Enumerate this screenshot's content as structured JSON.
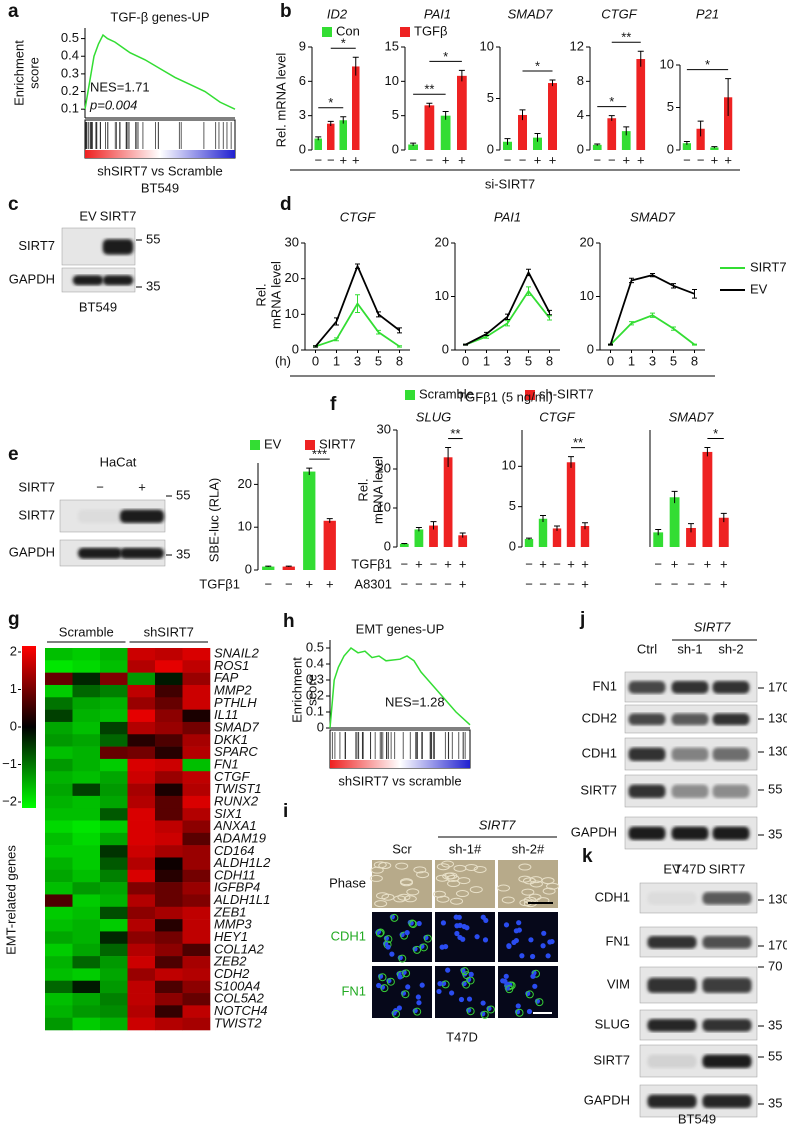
{
  "panel_labels": [
    "a",
    "b",
    "c",
    "d",
    "e",
    "f",
    "g",
    "h",
    "i",
    "j",
    "k"
  ],
  "shared_labels": {
    "b": "si-SIRT7",
    "d_x": "TGFβ1 (5 ng/ml)",
    "d_unit": "(h)"
  },
  "chart_data": [
    {
      "type": "line",
      "title": "TGF-β genes-UP",
      "ylabel": [
        "Enrichment",
        "score"
      ],
      "xlabel": [
        "shSIRT7 vs Scramble",
        "BT549"
      ],
      "annotations": [
        "NES=1.71",
        "p=0.004"
      ],
      "x": [
        0,
        3,
        6,
        9,
        12,
        15,
        20,
        30,
        40,
        50,
        60,
        70,
        80,
        90,
        100
      ],
      "xlim": [
        0,
        100
      ],
      "series": [
        {
          "color": "#33dd33",
          "values": [
            0.1,
            0.25,
            0.4,
            0.47,
            0.52,
            0.5,
            0.48,
            0.42,
            0.38,
            0.33,
            0.28,
            0.24,
            0.2,
            0.14,
            0.1
          ]
        }
      ],
      "ylim": [
        0.05,
        0.56
      ],
      "yticks": [
        0.1,
        0.2,
        0.3,
        0.4,
        0.5
      ]
    },
    {
      "type": "bar",
      "title": "ID2",
      "categories": [
        "−",
        "−",
        "+",
        "+"
      ],
      "values": [
        1,
        2.3,
        2.6,
        7.3
      ],
      "errors": [
        0.15,
        0.2,
        0.3,
        0.8
      ],
      "colors": [
        "#33dd33",
        "#ee2222",
        "#33dd33",
        "#ee2222"
      ],
      "ylim": [
        0,
        9
      ],
      "yticks": [
        0,
        3,
        6,
        9
      ],
      "ylabel": "Rel. mRNA level",
      "legend": [
        {
          "name": "Con",
          "color": "#33dd33"
        },
        {
          "name": "TGFβ",
          "color": "#ee2222"
        }
      ],
      "brackets": [
        {
          "from": 0,
          "to": 2,
          "label": "*"
        },
        {
          "from": 1,
          "to": 3,
          "label": "*"
        }
      ]
    },
    {
      "type": "bar",
      "title": "PAI1",
      "categories": [
        "−",
        "−",
        "+",
        "+"
      ],
      "values": [
        0.8,
        6.5,
        5,
        10.8
      ],
      "errors": [
        0.2,
        0.3,
        0.6,
        0.8
      ],
      "colors": [
        "#33dd33",
        "#ee2222",
        "#33dd33",
        "#ee2222"
      ],
      "ylim": [
        0,
        15
      ],
      "yticks": [
        0,
        5,
        10,
        15
      ],
      "brackets": [
        {
          "from": 0,
          "to": 2,
          "label": "**"
        },
        {
          "from": 1,
          "to": 3,
          "label": "*"
        }
      ]
    },
    {
      "type": "bar",
      "title": "SMAD7",
      "categories": [
        "−",
        "−",
        "+",
        "+"
      ],
      "values": [
        0.8,
        3.4,
        1.2,
        6.5
      ],
      "errors": [
        0.3,
        0.5,
        0.4,
        0.3
      ],
      "colors": [
        "#33dd33",
        "#ee2222",
        "#33dd33",
        "#ee2222"
      ],
      "ylim": [
        0,
        10
      ],
      "yticks": [
        0,
        5,
        10
      ],
      "brackets": [
        {
          "from": 1,
          "to": 3,
          "label": "*"
        }
      ]
    },
    {
      "type": "bar",
      "title": "CTGF",
      "categories": [
        "−",
        "−",
        "+",
        "+"
      ],
      "values": [
        0.6,
        3.7,
        2.2,
        10.6
      ],
      "errors": [
        0.1,
        0.3,
        0.5,
        0.9
      ],
      "colors": [
        "#33dd33",
        "#ee2222",
        "#33dd33",
        "#ee2222"
      ],
      "ylim": [
        0,
        12
      ],
      "yticks": [
        0,
        4,
        8,
        12
      ],
      "brackets": [
        {
          "from": 0,
          "to": 2,
          "label": "*"
        },
        {
          "from": 1,
          "to": 3,
          "label": "**"
        }
      ]
    },
    {
      "type": "bar",
      "title": "P21",
      "categories": [
        "−",
        "−",
        "+",
        "+"
      ],
      "values": [
        0.8,
        2.5,
        0.3,
        6.2
      ],
      "errors": [
        0.2,
        0.9,
        0.1,
        2.2
      ],
      "colors": [
        "#33dd33",
        "#ee2222",
        "#33dd33",
        "#ee2222"
      ],
      "ylim": [
        0,
        10
      ],
      "yticks": [
        0,
        5,
        10
      ],
      "brackets": [
        {
          "from": 0,
          "to": 3,
          "label": "*"
        }
      ]
    },
    {
      "type": "line",
      "title": "CTGF",
      "categories": [
        "0",
        "1",
        "3",
        "5",
        "8"
      ],
      "series": [
        {
          "color": "#33dd33",
          "values": [
            1,
            3,
            13,
            5,
            1
          ],
          "errors": [
            0.2,
            0.4,
            2.5,
            0.5,
            0.2
          ]
        },
        {
          "color": "#000000",
          "values": [
            1,
            8,
            23.5,
            10,
            5.5
          ],
          "errors": [
            0.2,
            1,
            0.6,
            0.7,
            0.7
          ]
        }
      ],
      "ylim": [
        0,
        30
      ],
      "yticks": [
        0,
        10,
        20,
        30
      ],
      "ylabel": [
        "Rel.",
        "mRNA level"
      ]
    },
    {
      "type": "line",
      "title": "PAI1",
      "categories": [
        "0",
        "1",
        "3",
        "5",
        "8"
      ],
      "series": [
        {
          "color": "#33dd33",
          "values": [
            1,
            2.5,
            5,
            11,
            6
          ],
          "errors": [
            0.1,
            0.3,
            0.5,
            0.8,
            0.4
          ]
        },
        {
          "color": "#000000",
          "values": [
            1,
            3,
            6.2,
            14.5,
            7
          ],
          "errors": [
            0.1,
            0.3,
            0.5,
            0.6,
            0.4
          ]
        }
      ],
      "ylim": [
        0,
        20
      ],
      "yticks": [
        0,
        10,
        20
      ]
    },
    {
      "type": "line",
      "title": "SMAD7",
      "categories": [
        "0",
        "1",
        "3",
        "5",
        "8"
      ],
      "series": [
        {
          "name": "SIRT7",
          "color": "#33dd33",
          "values": [
            1,
            5,
            6.5,
            4,
            1
          ],
          "errors": [
            0.1,
            0.3,
            0.4,
            0.3,
            0.1
          ]
        },
        {
          "name": "EV",
          "color": "#000000",
          "values": [
            1,
            13,
            14,
            12,
            10.5
          ],
          "errors": [
            0.1,
            0.4,
            0.3,
            0.4,
            0.8
          ]
        }
      ],
      "ylim": [
        0,
        20
      ],
      "yticks": [
        0,
        10,
        20
      ]
    },
    {
      "type": "bar",
      "rows": [
        {
          "name": "TGFβ1",
          "marks": [
            "−",
            "−",
            "+",
            "+"
          ]
        }
      ],
      "values": [
        0.8,
        0.8,
        23,
        11.5
      ],
      "errors": [
        0.1,
        0.1,
        0.8,
        0.5
      ],
      "colors": [
        "#33dd33",
        "#ee2222",
        "#33dd33",
        "#ee2222"
      ],
      "ylim": [
        0,
        25
      ],
      "yticks": [
        0,
        10,
        20
      ],
      "ylabel": "SBE-luc (RLA)",
      "legend": [
        {
          "name": "EV",
          "color": "#33dd33"
        },
        {
          "name": "SIRT7",
          "color": "#ee2222"
        }
      ],
      "brackets": [
        {
          "from": 2,
          "to": 3,
          "label": "***"
        }
      ]
    },
    {
      "type": "bar",
      "title": "SLUG",
      "rows": [
        {
          "name": "TGFβ1",
          "marks": [
            "−",
            "+",
            "−",
            "+",
            "+"
          ]
        },
        {
          "name": "A8301",
          "marks": [
            "−",
            "−",
            "−",
            "−",
            "+"
          ]
        }
      ],
      "values": [
        0.8,
        4.5,
        5.5,
        23,
        3
      ],
      "errors": [
        0.1,
        0.5,
        1,
        2.5,
        0.6
      ],
      "colors": [
        "#33dd33",
        "#33dd33",
        "#ee2222",
        "#ee2222",
        "#ee2222"
      ],
      "ylim": [
        0,
        30
      ],
      "yticks": [
        0,
        10,
        20,
        30
      ],
      "ylabel": [
        "Rel.",
        "mRNA level"
      ],
      "legend": [
        {
          "name": "Scramble",
          "color": "#33dd33"
        },
        {
          "name": "sh-SIRT7",
          "color": "#ee2222"
        }
      ],
      "brackets": [
        {
          "from": 3,
          "to": 4,
          "label": "**"
        }
      ]
    },
    {
      "type": "bar",
      "title": "CTGF",
      "rows": [
        {
          "marks": [
            "−",
            "+",
            "−",
            "+",
            "+"
          ]
        },
        {
          "marks": [
            "−",
            "−",
            "−",
            "−",
            "+"
          ]
        }
      ],
      "values": [
        1,
        3.5,
        2.3,
        10.5,
        2.6
      ],
      "errors": [
        0.1,
        0.4,
        0.3,
        0.7,
        0.4
      ],
      "colors": [
        "#33dd33",
        "#33dd33",
        "#ee2222",
        "#ee2222",
        "#ee2222"
      ],
      "ylim": [
        0,
        14.5
      ],
      "yticks": [
        0,
        5,
        10
      ],
      "brackets": [
        {
          "from": 3,
          "to": 4,
          "label": "**"
        }
      ]
    },
    {
      "type": "bar",
      "title": "SMAD7",
      "rows": [
        {
          "marks": [
            "−",
            "+",
            "−",
            "+",
            "+"
          ]
        },
        {
          "marks": [
            "−",
            "−",
            "−",
            "−",
            "+"
          ]
        }
      ],
      "values": [
        1,
        3.4,
        1.3,
        6.5,
        2
      ],
      "errors": [
        0.2,
        0.4,
        0.3,
        0.3,
        0.3
      ],
      "colors": [
        "#33dd33",
        "#33dd33",
        "#ee2222",
        "#ee2222",
        "#ee2222"
      ],
      "ylim": [
        0,
        8
      ],
      "yticks": [],
      "brackets": [
        {
          "from": 3,
          "to": 4,
          "label": "*"
        }
      ]
    },
    {
      "type": "heatmap",
      "ylabel": "EMT-related genes",
      "groups": [
        {
          "name": "Scramble",
          "span": 3
        },
        {
          "name": "shSIRT7",
          "span": 3
        }
      ],
      "clim": [
        -2,
        2
      ],
      "cticks": [
        2,
        1,
        0,
        {
          "value": -1,
          "label": "−1"
        },
        {
          "value": -2,
          "label": "−2"
        }
      ],
      "rows": [
        "SNAIL2",
        "ROS1",
        "FAP",
        "MMP2",
        "PTHLH",
        "IL11",
        "SMAD7",
        "DKK1",
        "SPARC",
        "FN1",
        "CTGF",
        "TWIST1",
        "RUNX2",
        "SIX1",
        "ANXA1",
        "ADAM19",
        "CD164",
        "ALDH1L2",
        "CDH11",
        "IGFBP4",
        "ALDH1L1",
        "ZEB1",
        "MMP3",
        "HEY1",
        "COL1A2",
        "ZEB2",
        "CDH2",
        "S100A4",
        "COL5A2",
        "NOTCH4",
        "TWIST2"
      ],
      "values": [
        [
          -1.5,
          -1.6,
          -1.4,
          1.6,
          1.5,
          1.7
        ],
        [
          -1.8,
          -1.7,
          -1.5,
          1.4,
          1.8,
          1.5
        ],
        [
          0.8,
          -0.3,
          1.0,
          -1.2,
          -0.2,
          1.2
        ],
        [
          -1.6,
          -0.8,
          -1.0,
          1.5,
          0.5,
          1.6
        ],
        [
          -0.9,
          -1.3,
          -1.4,
          1.2,
          0.8,
          1.6
        ],
        [
          -0.5,
          -1.4,
          -1.5,
          1.8,
          1.1,
          0.2
        ],
        [
          -1.3,
          -1.5,
          -0.5,
          1.4,
          1.2,
          0.9
        ],
        [
          -1.2,
          -1.3,
          -0.8,
          0.3,
          0.6,
          1.3
        ],
        [
          -1.5,
          -1.4,
          0.8,
          0.9,
          0.3,
          1.4
        ],
        [
          -1.2,
          -1.4,
          -1.6,
          1.7,
          1.6,
          -1.5
        ],
        [
          -1.4,
          -1.5,
          -1.3,
          1.6,
          1.2,
          1.5
        ],
        [
          -1.3,
          -0.5,
          -1.2,
          1.3,
          0.2,
          1.4
        ],
        [
          -1.4,
          -1.5,
          -1.3,
          1.4,
          0.7,
          1.7
        ],
        [
          -1.5,
          -1.5,
          -0.7,
          1.7,
          0.7,
          1.4
        ],
        [
          -1.7,
          -1.8,
          -1.6,
          1.7,
          1.5,
          1.1
        ],
        [
          -1.5,
          -1.7,
          -1.3,
          1.7,
          1.6,
          0.7
        ],
        [
          -1.6,
          -1.6,
          -0.4,
          1.6,
          1.3,
          1.2
        ],
        [
          -1.4,
          -1.6,
          -0.7,
          1.4,
          0.1,
          1.2
        ],
        [
          -1.3,
          -1.5,
          -1.0,
          1.7,
          0.3,
          0.9
        ],
        [
          -1.5,
          -1.2,
          -1.3,
          1.0,
          0.8,
          1.2
        ],
        [
          0.6,
          -1.6,
          -1.4,
          1.4,
          0.8,
          1.0
        ],
        [
          -1.6,
          -1.5,
          -0.6,
          1.1,
          1.3,
          1.5
        ],
        [
          -1.5,
          -1.4,
          -1.6,
          1.4,
          0.3,
          1.5
        ],
        [
          -1.3,
          -1.4,
          -0.3,
          1.1,
          0.9,
          1.5
        ],
        [
          -1.6,
          -1.3,
          -0.8,
          1.4,
          1.1,
          0.6
        ],
        [
          -1.4,
          -0.8,
          -1.2,
          1.6,
          0.6,
          1.3
        ],
        [
          -1.5,
          -1.6,
          -1.3,
          1.2,
          1.5,
          1.4
        ],
        [
          -0.8,
          -0.2,
          -1.2,
          1.5,
          0.6,
          1.1
        ],
        [
          -1.5,
          -1.3,
          -1.0,
          1.5,
          1.1,
          0.8
        ],
        [
          -1.4,
          -1.2,
          -1.1,
          1.4,
          0.4,
          1.5
        ],
        [
          -1.2,
          -1.6,
          -1.4,
          1.6,
          1.4,
          1.3
        ]
      ]
    },
    {
      "type": "line",
      "title": "EMT genes-UP",
      "ylabel": [
        "Enrichment",
        "score"
      ],
      "xlabel": [
        "shSIRT7 vs scramble"
      ],
      "annotations": [
        "NES=1.28"
      ],
      "x": [
        0,
        3,
        6,
        10,
        15,
        20,
        25,
        30,
        35,
        40,
        50,
        55,
        60,
        65,
        70,
        80,
        90,
        100
      ],
      "xlim": [
        0,
        100
      ],
      "series": [
        {
          "color": "#33dd33",
          "values": [
            0,
            0.3,
            0.38,
            0.45,
            0.5,
            0.47,
            0.48,
            0.44,
            0.45,
            0.42,
            0.43,
            0.45,
            0.42,
            0.35,
            0.3,
            0.2,
            0.1,
            0.02
          ]
        }
      ],
      "ylim": [
        0,
        0.55
      ],
      "yticks": [
        0,
        0.1,
        0.2,
        0.3,
        0.4,
        0.5
      ]
    }
  ],
  "blots": {
    "c": {
      "lanes": [
        "EV",
        "SIRT7"
      ],
      "rows": [
        {
          "label": "SIRT7",
          "marker": "55"
        },
        {
          "label": "GAPDH",
          "marker": "35"
        }
      ],
      "caption": "BT549"
    },
    "e": {
      "title": "HaCat",
      "lane_label": "SIRT7",
      "lanes": [
        "−",
        "+"
      ],
      "rows": [
        {
          "label": "SIRT7",
          "marker": "55"
        },
        {
          "label": "GAPDH",
          "marker": "35"
        }
      ]
    },
    "j": {
      "header": "SIRT7",
      "lanes": [
        "Ctrl",
        "sh-1",
        "sh-2"
      ],
      "rows": [
        {
          "label": "FN1",
          "marker": "170"
        },
        {
          "label": "CDH2",
          "marker": "130"
        },
        {
          "label": "CDH1",
          "marker": "130"
        },
        {
          "label": "SIRT7",
          "marker": "55"
        },
        {
          "label": "GAPDH",
          "marker": "35"
        }
      ],
      "caption": "T47D"
    },
    "k": {
      "lanes": [
        "EV",
        "SIRT7"
      ],
      "rows": [
        {
          "label": "CDH1",
          "marker": "130"
        },
        {
          "label": "FN1",
          "marker": "170"
        },
        {
          "label": "VIM",
          "marker": "70"
        },
        {
          "label": "SLUG",
          "marker": "35"
        },
        {
          "label": "SIRT7",
          "marker": "55"
        },
        {
          "label": "GAPDH",
          "marker": "35"
        }
      ],
      "caption": "BT549"
    }
  },
  "imaging": {
    "header": "SIRT7",
    "columns": [
      "Scr",
      "sh-1#",
      "sh-2#"
    ],
    "rows": [
      "Phase",
      "CDH1",
      "FN1"
    ],
    "caption": "T47D"
  }
}
